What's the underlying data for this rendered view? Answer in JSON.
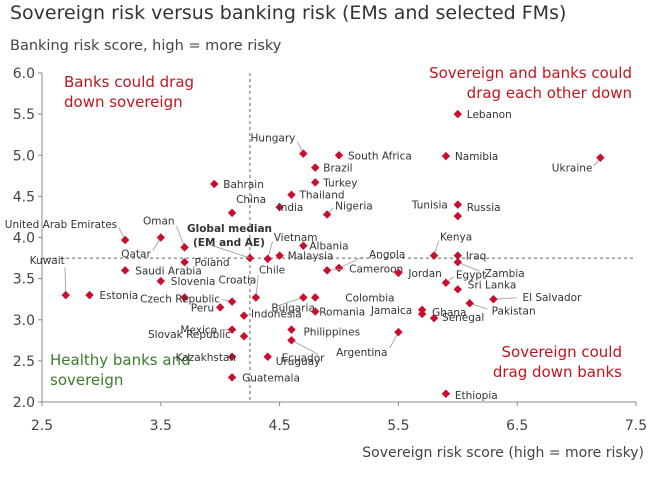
{
  "colors": {
    "marker": "#c8102e",
    "red_text": "#c0151b",
    "green_text": "#3a7d2c",
    "axis": "#888888",
    "text": "#333333"
  },
  "chart_data": {
    "type": "scatter",
    "title": "Sovereign risk versus banking risk (EMs and selected FMs)",
    "ylabel": "Banking risk score, high = more risky",
    "xlabel": "Sovereign risk score (high = more risky)",
    "xlim": [
      2.5,
      7.5
    ],
    "ylim": [
      2.0,
      6.0
    ],
    "xticks": [
      "2.5",
      "3.5",
      "4.5",
      "5.5",
      "6.5",
      "7.5"
    ],
    "yticks": [
      "2.0",
      "2.5",
      "3.0",
      "3.5",
      "4.0",
      "4.5",
      "5.0",
      "5.5",
      "6.0"
    ],
    "reference_lines": {
      "median_x": 4.25,
      "median_y": 3.75
    },
    "median_point": {
      "x": 4.25,
      "y": 3.75,
      "label_line1": "Global median",
      "label_line2": "(EM and AE)"
    },
    "quadrant_labels": {
      "top_left": [
        "Banks could drag",
        "down sovereign"
      ],
      "top_right": [
        "Sovereign and banks could",
        "drag each other down"
      ],
      "bottom_left": [
        "Healthy banks and",
        "sovereign"
      ],
      "bottom_right": [
        "Sovereign could",
        "drag down banks"
      ]
    },
    "points": [
      {
        "name": "Lebanon",
        "x": 6.0,
        "y": 5.5
      },
      {
        "name": "Hungary",
        "x": 4.7,
        "y": 5.02
      },
      {
        "name": "South Africa",
        "x": 5.0,
        "y": 5.0
      },
      {
        "name": "Namibia",
        "x": 5.9,
        "y": 4.99
      },
      {
        "name": "Ukraine",
        "x": 7.2,
        "y": 4.97
      },
      {
        "name": "Brazil",
        "x": 4.8,
        "y": 4.85
      },
      {
        "name": "Bahrain",
        "x": 3.95,
        "y": 4.65
      },
      {
        "name": "Turkey",
        "x": 4.8,
        "y": 4.67
      },
      {
        "name": "Thailand",
        "x": 4.6,
        "y": 4.52
      },
      {
        "name": "China",
        "x": 4.1,
        "y": 4.3
      },
      {
        "name": "India",
        "x": 4.5,
        "y": 4.37
      },
      {
        "name": "Nigeria",
        "x": 4.9,
        "y": 4.28
      },
      {
        "name": "Tunisia",
        "x": 6.0,
        "y": 4.4
      },
      {
        "name": "Russia",
        "x": 6.0,
        "y": 4.26
      },
      {
        "name": "Oman",
        "x": 3.7,
        "y": 3.88
      },
      {
        "name": "United Arab Emirates",
        "x": 3.2,
        "y": 3.97
      },
      {
        "name": "Qatar",
        "x": 3.5,
        "y": 4.0
      },
      {
        "name": "Vietnam",
        "x": 4.4,
        "y": 3.74
      },
      {
        "name": "Albania",
        "x": 4.7,
        "y": 3.9
      },
      {
        "name": "Malaysia",
        "x": 4.5,
        "y": 3.78
      },
      {
        "name": "Angola",
        "x": 5.0,
        "y": 3.63
      },
      {
        "name": "Kenya",
        "x": 5.8,
        "y": 3.78
      },
      {
        "name": "Iraq",
        "x": 6.0,
        "y": 3.78
      },
      {
        "name": "Poland",
        "x": 3.7,
        "y": 3.7
      },
      {
        "name": "Kuwait",
        "x": 2.7,
        "y": 3.3
      },
      {
        "name": "Saudi Arabia",
        "x": 3.2,
        "y": 3.6
      },
      {
        "name": "Cameroon",
        "x": 4.9,
        "y": 3.6
      },
      {
        "name": "Jordan",
        "x": 5.5,
        "y": 3.57
      },
      {
        "name": "Zambia",
        "x": 6.0,
        "y": 3.7
      },
      {
        "name": "Slovenia",
        "x": 3.5,
        "y": 3.47
      },
      {
        "name": "Egypt",
        "x": 5.9,
        "y": 3.45
      },
      {
        "name": "Sri Lanka",
        "x": 6.0,
        "y": 3.37
      },
      {
        "name": "Estonia",
        "x": 2.9,
        "y": 3.3
      },
      {
        "name": "Croatia",
        "x": 3.7,
        "y": 3.27
      },
      {
        "name": "Chile",
        "x": 4.3,
        "y": 3.27
      },
      {
        "name": "Colombia",
        "x": 4.8,
        "y": 3.27
      },
      {
        "name": "Czech Republic",
        "x": 4.1,
        "y": 3.22
      },
      {
        "name": "Peru",
        "x": 4.0,
        "y": 3.15
      },
      {
        "name": "Bulgaria",
        "x": 4.7,
        "y": 3.27
      },
      {
        "name": "Romania",
        "x": 4.8,
        "y": 3.1
      },
      {
        "name": "El Salvador",
        "x": 6.3,
        "y": 3.25
      },
      {
        "name": "Pakistan",
        "x": 6.1,
        "y": 3.2
      },
      {
        "name": "Indonesia",
        "x": 4.2,
        "y": 3.05
      },
      {
        "name": "Jamaica",
        "x": 5.7,
        "y": 3.12
      },
      {
        "name": "Ghana",
        "x": 5.7,
        "y": 3.07
      },
      {
        "name": "Senegal",
        "x": 5.8,
        "y": 3.02
      },
      {
        "name": "Mexico",
        "x": 4.1,
        "y": 2.88
      },
      {
        "name": "Philippines",
        "x": 4.6,
        "y": 2.88
      },
      {
        "name": "Argentina",
        "x": 5.5,
        "y": 2.85
      },
      {
        "name": "Slovak Republic",
        "x": 4.2,
        "y": 2.8
      },
      {
        "name": "Ecuador",
        "x": 4.6,
        "y": 2.75
      },
      {
        "name": "Kazakhstan",
        "x": 4.1,
        "y": 2.55
      },
      {
        "name": "Uruguay",
        "x": 4.4,
        "y": 2.55
      },
      {
        "name": "Guatemala",
        "x": 4.1,
        "y": 2.3
      },
      {
        "name": "Ethiopia",
        "x": 5.9,
        "y": 2.1
      }
    ]
  }
}
